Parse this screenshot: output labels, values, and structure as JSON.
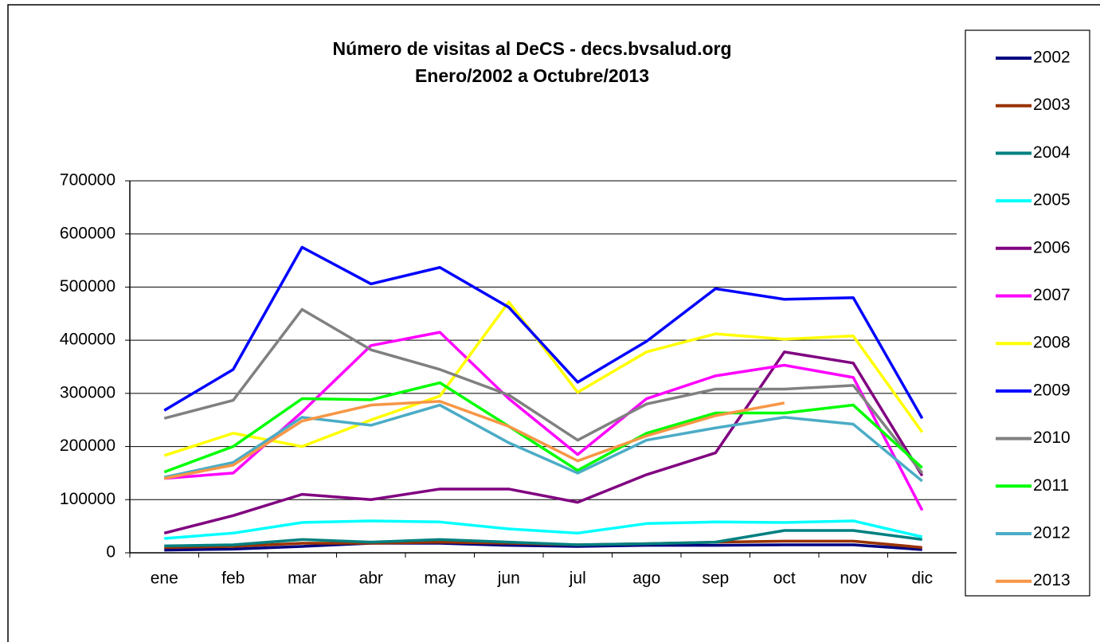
{
  "chart_data": {
    "type": "line",
    "title": "Número de visitas al DeCS - decs.bvsalud.org",
    "subtitle": "Enero/2002 a Octubre/2013",
    "categories": [
      "ene",
      "feb",
      "mar",
      "abr",
      "may",
      "jun",
      "jul",
      "ago",
      "sep",
      "oct",
      "nov",
      "dic"
    ],
    "ylim": [
      0,
      700000
    ],
    "yticks": [
      0,
      100000,
      200000,
      300000,
      400000,
      500000,
      600000,
      700000
    ],
    "grid": true,
    "legend": "right",
    "series": [
      {
        "name": "2002",
        "color": "#000080",
        "values": [
          5000,
          7000,
          12000,
          18000,
          18000,
          14000,
          12000,
          14000,
          14000,
          15000,
          15000,
          6000
        ]
      },
      {
        "name": "2003",
        "color": "#993300",
        "values": [
          10000,
          12000,
          18000,
          18000,
          20000,
          18000,
          15000,
          17000,
          20000,
          22000,
          22000,
          10000
        ]
      },
      {
        "name": "2004",
        "color": "#008080",
        "values": [
          13000,
          15000,
          25000,
          20000,
          25000,
          20000,
          15000,
          17000,
          20000,
          42000,
          42000,
          25000
        ]
      },
      {
        "name": "2005",
        "color": "#00ffff",
        "values": [
          27000,
          37000,
          57000,
          60000,
          58000,
          45000,
          37000,
          55000,
          58000,
          57000,
          60000,
          30000
        ]
      },
      {
        "name": "2006",
        "color": "#800080",
        "values": [
          37000,
          70000,
          110000,
          100000,
          120000,
          120000,
          95000,
          147000,
          188000,
          378000,
          357000,
          145000
        ]
      },
      {
        "name": "2007",
        "color": "#ff00ff",
        "values": [
          140000,
          150000,
          265000,
          390000,
          415000,
          290000,
          185000,
          290000,
          333000,
          353000,
          330000,
          80000
        ]
      },
      {
        "name": "2008",
        "color": "#ffff00",
        "values": [
          183000,
          225000,
          200000,
          250000,
          295000,
          472000,
          302000,
          378000,
          412000,
          402000,
          408000,
          227000
        ]
      },
      {
        "name": "2009",
        "color": "#0000ff",
        "values": [
          268000,
          345000,
          575000,
          506000,
          537000,
          462000,
          321000,
          398000,
          497000,
          477000,
          480000,
          253000
        ]
      },
      {
        "name": "2010",
        "color": "#808080",
        "values": [
          253000,
          287000,
          458000,
          382000,
          345000,
          297000,
          212000,
          280000,
          308000,
          308000,
          315000,
          150000
        ]
      },
      {
        "name": "2011",
        "color": "#00ff00",
        "values": [
          152000,
          200000,
          290000,
          288000,
          320000,
          238000,
          155000,
          225000,
          263000,
          263000,
          278000,
          160000
        ]
      },
      {
        "name": "2012",
        "color": "#4bacc6",
        "values": [
          142000,
          170000,
          255000,
          240000,
          278000,
          207000,
          150000,
          212000,
          235000,
          255000,
          242000,
          135000
        ]
      },
      {
        "name": "2013",
        "color": "#f79646",
        "values": [
          140000,
          165000,
          248000,
          278000,
          285000,
          238000,
          173000,
          220000,
          258000,
          282000,
          null,
          null
        ]
      }
    ]
  }
}
